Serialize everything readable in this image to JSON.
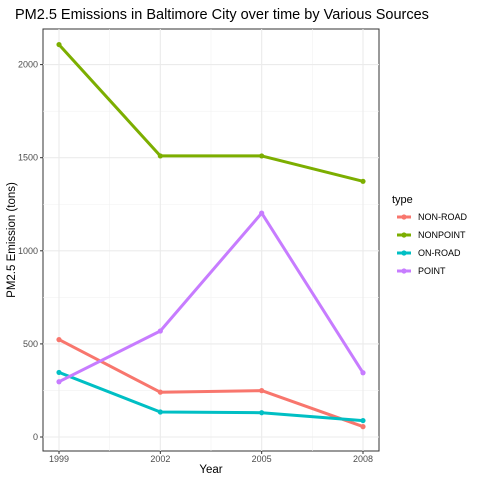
{
  "chart_data": {
    "type": "line",
    "title": "PM2.5 Emissions in Baltimore City over time by Various Sources",
    "xlabel": "Year",
    "ylabel": "PM2.5 Emission (tons)",
    "x": [
      "1999",
      "2002",
      "2005",
      "2008"
    ],
    "xlim": [
      1999,
      2008
    ],
    "ylim": [
      0,
      2200
    ],
    "yticks": [
      0,
      500,
      1000,
      1500,
      2000
    ],
    "grid": true,
    "legend": {
      "title": "type",
      "position": "right"
    },
    "series": [
      {
        "name": "NON-ROAD",
        "color": "#F8766D",
        "values": [
          522.94,
          240.85,
          248.93,
          55.82
        ]
      },
      {
        "name": "NONPOINT",
        "color": "#7CAE00",
        "values": [
          2107.63,
          1509.5,
          1509.5,
          1373.21
        ]
      },
      {
        "name": "ON-ROAD",
        "color": "#00BFC4",
        "values": [
          346.82,
          134.31,
          130.43,
          88.28
        ]
      },
      {
        "name": "POINT",
        "color": "#C77CFF",
        "values": [
          296.8,
          569.26,
          1202.49,
          344.98
        ]
      }
    ]
  }
}
